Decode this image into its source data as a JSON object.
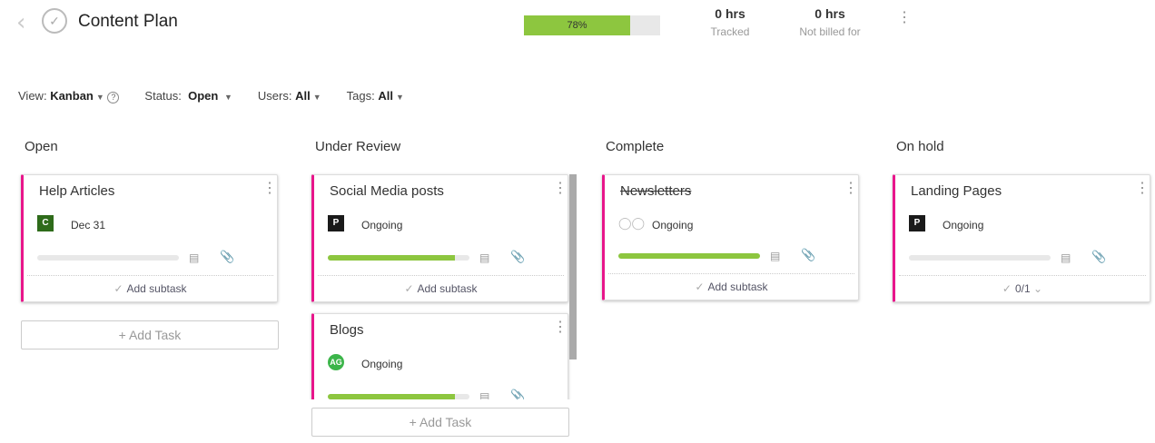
{
  "header": {
    "title": "Content Plan",
    "progress_label": "78%",
    "progress": 78,
    "tracked": {
      "value": "0 hrs",
      "label": "Tracked"
    },
    "not_billed": {
      "value": "0 hrs",
      "label": "Not billed for"
    }
  },
  "filters": {
    "view_label": "View:",
    "view": "Kanban",
    "status_label": "Status:",
    "status": "Open",
    "users_label": "Users:",
    "users": "All",
    "tags_label": "Tags:",
    "tags": "All"
  },
  "columns": [
    {
      "title": "Open",
      "add_task": "+ Add Task",
      "cards": [
        {
          "name": "Help Articles",
          "avatar": "C",
          "avatar_color": "#2e6b1a",
          "when": "Dec 31",
          "progress": 0,
          "footer": "Add subtask"
        }
      ]
    },
    {
      "title": "Under Review",
      "add_task": "+ Add Task",
      "cards": [
        {
          "name": "Social Media posts",
          "avatar": "P",
          "avatar_color": "#1a1a1a",
          "when": "Ongoing",
          "progress": 90,
          "footer": "Add subtask"
        },
        {
          "name": "Blogs",
          "avatar": "AG",
          "avatar_color": "#3cb54a",
          "when": "Ongoing",
          "progress": 90
        }
      ]
    },
    {
      "title": "Complete",
      "cards": [
        {
          "name": "Newsletters",
          "avatar": "group",
          "when": "Ongoing",
          "progress": 100,
          "completed": true,
          "footer": "Add subtask"
        }
      ]
    },
    {
      "title": "On hold",
      "cards": [
        {
          "name": "Landing Pages",
          "avatar": "P",
          "avatar_color": "#1a1a1a",
          "when": "Ongoing",
          "progress": 0,
          "footer": "0/1"
        }
      ]
    }
  ]
}
